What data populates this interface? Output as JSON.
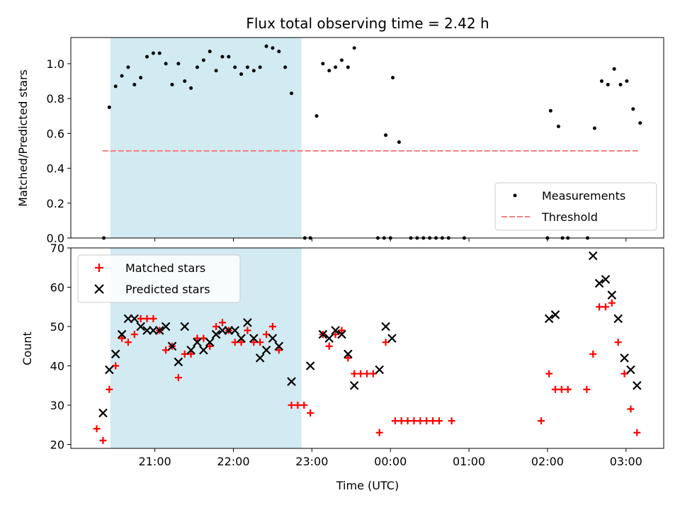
{
  "figure": {
    "title": "Flux total observing time = 2.42 h",
    "xlabel": "Time (UTC)",
    "x_ticks": [
      "21:00",
      "22:00",
      "23:00",
      "00:00",
      "01:00",
      "02:00",
      "03:00"
    ]
  },
  "colors": {
    "shade": "#add8e6",
    "threshold": "#f08080",
    "matched": "#ff0000",
    "predicted": "#000000",
    "measure": "#000000"
  },
  "chart_data": [
    {
      "type": "scatter",
      "ylabel": "Matched/Predicted stars",
      "x_unit": "hours since 20:00 UTC",
      "ylim": [
        0,
        1.15
      ],
      "y_ticks": [
        "0.0",
        "0.2",
        "0.4",
        "0.6",
        "0.8",
        "1.0"
      ],
      "shaded_span": [
        "20:26",
        "22:52"
      ],
      "legend": {
        "placement": "lower right",
        "entries": [
          "Measurements",
          "Threshold"
        ]
      },
      "threshold": {
        "name": "Threshold",
        "y": 0.5,
        "x_range": [
          "20:20",
          "03:10"
        ]
      },
      "series": [
        {
          "name": "Measurements",
          "points": [
            [
              0.35,
              0.0
            ],
            [
              0.42,
              0.75
            ],
            [
              0.5,
              0.87
            ],
            [
              0.58,
              0.93
            ],
            [
              0.66,
              0.98
            ],
            [
              0.74,
              0.88
            ],
            [
              0.82,
              0.92
            ],
            [
              0.9,
              1.04
            ],
            [
              0.98,
              1.06
            ],
            [
              1.06,
              1.06
            ],
            [
              1.14,
              1.0
            ],
            [
              1.22,
              0.88
            ],
            [
              1.3,
              1.0
            ],
            [
              1.38,
              0.9
            ],
            [
              1.46,
              0.86
            ],
            [
              1.54,
              0.98
            ],
            [
              1.62,
              1.02
            ],
            [
              1.7,
              1.07
            ],
            [
              1.78,
              0.96
            ],
            [
              1.86,
              1.04
            ],
            [
              1.94,
              1.04
            ],
            [
              2.02,
              0.98
            ],
            [
              2.1,
              0.94
            ],
            [
              2.18,
              0.98
            ],
            [
              2.26,
              0.96
            ],
            [
              2.34,
              0.98
            ],
            [
              2.42,
              1.1
            ],
            [
              2.5,
              1.09
            ],
            [
              2.58,
              1.07
            ],
            [
              2.66,
              0.98
            ],
            [
              2.74,
              0.83
            ],
            [
              2.91,
              0.0
            ],
            [
              2.98,
              0.0
            ],
            [
              3.06,
              0.7
            ],
            [
              3.14,
              1.0
            ],
            [
              3.22,
              0.96
            ],
            [
              3.3,
              0.98
            ],
            [
              3.38,
              1.02
            ],
            [
              3.46,
              0.98
            ],
            [
              3.54,
              1.09
            ],
            [
              3.84,
              0.0
            ],
            [
              3.92,
              0.0
            ],
            [
              4.0,
              0.0
            ],
            [
              3.94,
              0.59
            ],
            [
              4.03,
              0.92
            ],
            [
              4.11,
              0.55
            ],
            [
              4.26,
              0.0
            ],
            [
              4.34,
              0.0
            ],
            [
              4.42,
              0.0
            ],
            [
              4.5,
              0.0
            ],
            [
              4.58,
              0.0
            ],
            [
              4.66,
              0.0
            ],
            [
              4.74,
              0.0
            ],
            [
              4.94,
              0.0
            ],
            [
              6.0,
              0.0
            ],
            [
              6.04,
              0.73
            ],
            [
              6.14,
              0.64
            ],
            [
              6.19,
              0.0
            ],
            [
              6.26,
              0.0
            ],
            [
              6.51,
              0.0
            ],
            [
              6.6,
              0.63
            ],
            [
              6.69,
              0.9
            ],
            [
              6.77,
              0.88
            ],
            [
              6.85,
              0.97
            ],
            [
              6.93,
              0.88
            ],
            [
              7.01,
              0.9
            ],
            [
              7.09,
              0.74
            ],
            [
              7.18,
              0.66
            ]
          ]
        }
      ]
    },
    {
      "type": "scatter",
      "ylabel": "Count",
      "x_unit": "hours since 20:00 UTC",
      "ylim": [
        19,
        70
      ],
      "y_ticks": [
        "20",
        "30",
        "40",
        "50",
        "60",
        "70"
      ],
      "shaded_span": [
        "20:26",
        "22:52"
      ],
      "legend": {
        "placement": "upper left",
        "entries": [
          "Matched stars",
          "Predicted stars"
        ]
      },
      "series": [
        {
          "name": "Matched stars",
          "points": [
            [
              0.26,
              24
            ],
            [
              0.34,
              21
            ],
            [
              0.42,
              34
            ],
            [
              0.5,
              40
            ],
            [
              0.58,
              47
            ],
            [
              0.66,
              46
            ],
            [
              0.74,
              48
            ],
            [
              0.82,
              52
            ],
            [
              0.9,
              52
            ],
            [
              0.98,
              52
            ],
            [
              1.06,
              49
            ],
            [
              1.14,
              44
            ],
            [
              1.22,
              45
            ],
            [
              1.3,
              37
            ],
            [
              1.38,
              43
            ],
            [
              1.46,
              43
            ],
            [
              1.54,
              47
            ],
            [
              1.62,
              47
            ],
            [
              1.7,
              45
            ],
            [
              1.78,
              50
            ],
            [
              1.86,
              51
            ],
            [
              1.94,
              49
            ],
            [
              2.02,
              46
            ],
            [
              2.1,
              46
            ],
            [
              2.18,
              49
            ],
            [
              2.26,
              46
            ],
            [
              2.34,
              46
            ],
            [
              2.42,
              48
            ],
            [
              2.5,
              50
            ],
            [
              2.58,
              44
            ],
            [
              2.74,
              30
            ],
            [
              2.82,
              30
            ],
            [
              2.9,
              30
            ],
            [
              2.98,
              28
            ],
            [
              3.14,
              48
            ],
            [
              3.22,
              45
            ],
            [
              3.3,
              48
            ],
            [
              3.38,
              49
            ],
            [
              3.46,
              42
            ],
            [
              3.54,
              38
            ],
            [
              3.62,
              38
            ],
            [
              3.7,
              38
            ],
            [
              3.78,
              38
            ],
            [
              3.86,
              23
            ],
            [
              3.94,
              46
            ],
            [
              4.06,
              26
            ],
            [
              4.14,
              26
            ],
            [
              4.22,
              26
            ],
            [
              4.3,
              26
            ],
            [
              4.38,
              26
            ],
            [
              4.46,
              26
            ],
            [
              4.54,
              26
            ],
            [
              4.62,
              26
            ],
            [
              4.78,
              26
            ],
            [
              5.92,
              26
            ],
            [
              6.02,
              38
            ],
            [
              6.1,
              34
            ],
            [
              6.18,
              34
            ],
            [
              6.26,
              34
            ],
            [
              6.5,
              34
            ],
            [
              6.58,
              43
            ],
            [
              6.66,
              55
            ],
            [
              6.74,
              55
            ],
            [
              6.82,
              56
            ],
            [
              6.9,
              46
            ],
            [
              6.98,
              38
            ],
            [
              7.06,
              29
            ],
            [
              7.14,
              23
            ]
          ]
        },
        {
          "name": "Predicted stars",
          "points": [
            [
              0.34,
              28
            ],
            [
              0.42,
              39
            ],
            [
              0.5,
              43
            ],
            [
              0.58,
              48
            ],
            [
              0.66,
              52
            ],
            [
              0.74,
              52
            ],
            [
              0.82,
              50
            ],
            [
              0.9,
              49
            ],
            [
              0.98,
              49
            ],
            [
              1.06,
              49
            ],
            [
              1.14,
              50
            ],
            [
              1.22,
              45
            ],
            [
              1.3,
              41
            ],
            [
              1.38,
              50
            ],
            [
              1.46,
              44
            ],
            [
              1.54,
              46
            ],
            [
              1.62,
              44
            ],
            [
              1.7,
              46
            ],
            [
              1.78,
              48
            ],
            [
              1.86,
              49
            ],
            [
              1.94,
              49
            ],
            [
              2.02,
              49
            ],
            [
              2.1,
              47
            ],
            [
              2.18,
              51
            ],
            [
              2.26,
              47
            ],
            [
              2.34,
              42
            ],
            [
              2.42,
              44
            ],
            [
              2.5,
              47
            ],
            [
              2.58,
              45
            ],
            [
              2.74,
              36
            ],
            [
              2.98,
              40
            ],
            [
              3.14,
              48
            ],
            [
              3.22,
              47
            ],
            [
              3.3,
              49
            ],
            [
              3.38,
              48
            ],
            [
              3.46,
              43
            ],
            [
              3.54,
              35
            ],
            [
              3.86,
              39
            ],
            [
              3.94,
              50
            ],
            [
              4.02,
              47
            ],
            [
              6.02,
              52
            ],
            [
              6.1,
              53
            ],
            [
              6.58,
              68
            ],
            [
              6.66,
              61
            ],
            [
              6.74,
              62
            ],
            [
              6.82,
              58
            ],
            [
              6.9,
              52
            ],
            [
              6.98,
              42
            ],
            [
              7.06,
              39
            ],
            [
              7.14,
              35
            ]
          ]
        }
      ]
    }
  ]
}
